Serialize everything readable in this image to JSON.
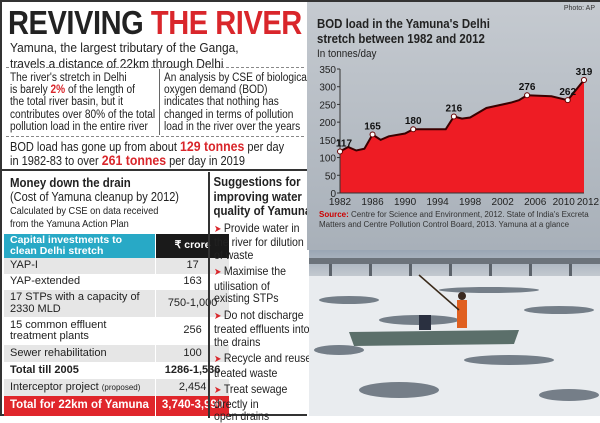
{
  "header": {
    "title_part1": "REVIVING",
    "title_part2": "THE RIVER",
    "subtitle_line1": "Yamuna, the largest tributary of the Ganga,",
    "subtitle_line2": "travels a distance of 22km through Delhi"
  },
  "facts": {
    "left": [
      "The river's stretch in Delhi",
      "is barely ",
      "2%",
      " of the length of",
      "the total river basin, but it",
      "contributes over 80% of the total",
      "pollution load in the entire river"
    ],
    "right": [
      "An analysis by CSE of biological",
      "oxygen demand (BOD)",
      "indicates that nothing has",
      "changed in terms of pollution",
      "load in the river over the years"
    ],
    "bod": [
      "BOD load has gone up from about ",
      "129 tonnes",
      " per day",
      "in 1982-83 to over ",
      "261 tonnes",
      " per day in 2019"
    ]
  },
  "money": {
    "heading": "Money down the drain",
    "subheading": "(Cost of Yamuna cleanup by 2012)",
    "credit_line1": "Calculated by CSE on data received",
    "credit_line2": "from the Yamuna Action Plan",
    "table_header": [
      "Capital investments to",
      "clean Delhi stretch",
      "₹ crore"
    ],
    "rows": [
      {
        "item": "YAP-I",
        "value": "17"
      },
      {
        "item": "YAP-extended",
        "value": "163"
      },
      {
        "item": "17 STPs with a capacity of",
        "item2": "2330 MLD",
        "value": "750-1,000"
      },
      {
        "item": "15 common effluent",
        "item2": "treatment plants",
        "value": "256"
      },
      {
        "item": "Sewer rehabilitation",
        "value": "100"
      },
      {
        "item": "Total till 2005",
        "value": "1286-1,536"
      },
      {
        "item": "Interceptor project ",
        "note": "(proposed)",
        "value": "2,454"
      },
      {
        "item": "Total for 22km of Yamuna",
        "value": "3,740-3,990"
      }
    ]
  },
  "suggestions": {
    "heading": [
      "Suggestions for",
      "improving water",
      "quality of Yamuna"
    ],
    "items": [
      [
        "Provide water in",
        "the river for dilution",
        "of waste"
      ],
      [
        "Maximise the",
        "utilisation of",
        "existing STPs"
      ],
      [
        "Do not discharge",
        "treated effluents into",
        "the drains"
      ],
      [
        "Recycle and reuse",
        "treated waste"
      ],
      [
        "Treat sewage",
        "directly in",
        "open drains"
      ]
    ]
  },
  "photo_credit": "Photo: AP",
  "colors": {
    "accent_red": "#d9262b",
    "table_cyan": "#28a9c6",
    "area_fill": "#ee1c24"
  },
  "chart_data": {
    "type": "area",
    "title_line1": "BOD load in the Yamuna's Delhi",
    "title_line2": "stretch between 1982 and 2012",
    "ylabel": "In tonnes/day",
    "xlim": [
      1982,
      2012
    ],
    "ylim": [
      0,
      350
    ],
    "xticks": [
      1982,
      1986,
      1990,
      1994,
      1998,
      2002,
      2006,
      2010,
      2012
    ],
    "yticks": [
      0,
      50,
      100,
      150,
      200,
      250,
      300,
      350
    ],
    "x": [
      1982,
      1983,
      1984,
      1985,
      1986,
      1987,
      1988,
      1990,
      1991,
      1995,
      1996,
      1997,
      1998,
      2000,
      2003,
      2004,
      2005,
      2008,
      2010,
      2012
    ],
    "y": [
      117,
      130,
      120,
      125,
      165,
      150,
      160,
      168,
      180,
      180,
      216,
      210,
      213,
      240,
      255,
      262,
      276,
      273,
      262,
      319
    ],
    "labeled_points": [
      {
        "x": 1982,
        "y": 117
      },
      {
        "x": 1986,
        "y": 165
      },
      {
        "x": 1991,
        "y": 180
      },
      {
        "x": 1996,
        "y": 216
      },
      {
        "x": 2005,
        "y": 276
      },
      {
        "x": 2010,
        "y": 262
      },
      {
        "x": 2012,
        "y": 319
      }
    ],
    "source_label": "Source:",
    "source": "Centre for Science and Environment, 2012. State of India's Excreta Matters and Centre Pollution Control Board, 2013. Yamuna at a glance"
  }
}
